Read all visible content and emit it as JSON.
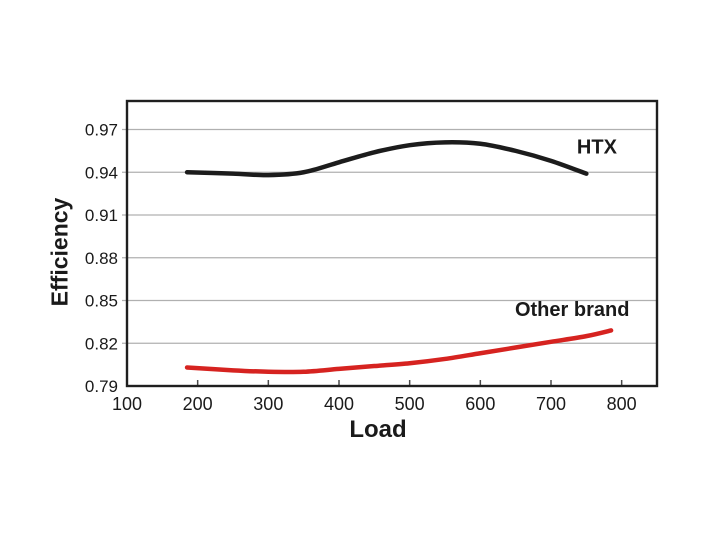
{
  "chart_data": {
    "type": "line",
    "xlabel": "Load",
    "ylabel": "Efficiency",
    "xlim": [
      100,
      850
    ],
    "ylim": [
      0.79,
      0.99
    ],
    "x_ticks": [
      100,
      200,
      300,
      400,
      500,
      600,
      700,
      800
    ],
    "y_ticks": [
      0.79,
      0.82,
      0.85,
      0.88,
      0.91,
      0.94,
      0.97
    ],
    "grid": "horizontal-only",
    "legend_position": "inline-annotations",
    "background": "#ffffff",
    "grid_color": "#b0b0b0",
    "border_color": "#1f1f1f",
    "text_color": "#1a1a1a",
    "series": [
      {
        "name": "HTX",
        "color": "#1c1c1c",
        "x": [
          185,
          250,
          300,
          350,
          400,
          450,
          500,
          550,
          600,
          650,
          700,
          750
        ],
        "y": [
          0.94,
          0.939,
          0.938,
          0.94,
          0.947,
          0.954,
          0.959,
          0.961,
          0.96,
          0.955,
          0.948,
          0.939
        ]
      },
      {
        "name": "Other brand",
        "color": "#d62320",
        "x": [
          185,
          250,
          300,
          350,
          400,
          450,
          500,
          550,
          600,
          650,
          700,
          750,
          785
        ],
        "y": [
          0.803,
          0.801,
          0.8,
          0.8,
          0.802,
          0.804,
          0.806,
          0.809,
          0.813,
          0.817,
          0.821,
          0.825,
          0.829
        ]
      }
    ],
    "annotations": [
      {
        "text": "HTX",
        "x": 765,
        "y": 0.958
      },
      {
        "text": "Other brand",
        "x": 730,
        "y": 0.844
      }
    ]
  }
}
